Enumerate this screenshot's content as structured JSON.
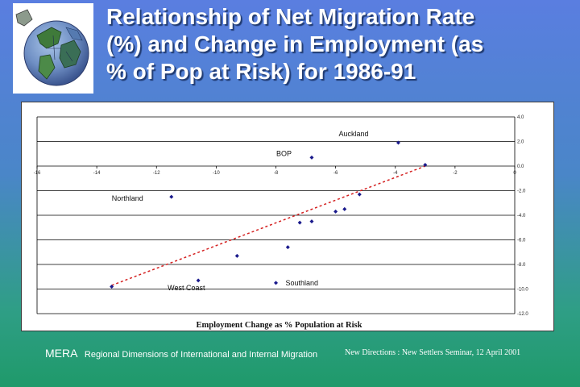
{
  "slide": {
    "title_lines": [
      "Relationship of Net Migration Rate",
      "(%) and Change in Employment (as",
      "% of Pop at Risk) for 1986-91"
    ],
    "logo_icon": "globe-icon"
  },
  "chart_data": {
    "type": "scatter",
    "title": "",
    "xlabel": "Employment Change as % Population at Risk",
    "ylabel": "",
    "xlim": [
      -16,
      0
    ],
    "ylim": [
      -12,
      4
    ],
    "x_ticks": [
      "-16",
      "-14",
      "-12",
      "-10",
      "-8",
      "-6",
      "-4",
      "-2",
      "0"
    ],
    "y_ticks": [
      "4.0",
      "2.0",
      "0.0",
      "-2.0",
      "-4.0",
      "-6.0",
      "-8.0",
      "-10.0",
      "-12.0"
    ],
    "grid": "horizontal",
    "marker_color": "#1a1a8c",
    "trend_color": "#d42020",
    "points": [
      {
        "x": -3.9,
        "y": 1.9,
        "label": "Auckland"
      },
      {
        "x": -6.8,
        "y": 0.7,
        "label": "BOP"
      },
      {
        "x": -3.0,
        "y": 0.1,
        "label": ""
      },
      {
        "x": -11.5,
        "y": -2.5,
        "label": "Northland"
      },
      {
        "x": -5.2,
        "y": -2.3,
        "label": ""
      },
      {
        "x": -5.7,
        "y": -3.5,
        "label": ""
      },
      {
        "x": -6.0,
        "y": -3.7,
        "label": ""
      },
      {
        "x": -6.8,
        "y": -4.5,
        "label": ""
      },
      {
        "x": -7.2,
        "y": -4.6,
        "label": ""
      },
      {
        "x": -7.6,
        "y": -6.6,
        "label": ""
      },
      {
        "x": -9.3,
        "y": -7.3,
        "label": ""
      },
      {
        "x": -10.6,
        "y": -9.3,
        "label": "West Coast"
      },
      {
        "x": -8.0,
        "y": -9.5,
        "label": "Southland"
      },
      {
        "x": -13.5,
        "y": -9.8,
        "label": ""
      }
    ],
    "trendline": {
      "x": [
        -13.5,
        -3.0
      ],
      "y": [
        -9.7,
        0.0
      ]
    }
  },
  "footer": {
    "brand": "MERA",
    "subtitle": "Regional Dimensions of International and Internal Migration",
    "conference": "New Directions : New Settlers Seminar, 12 April 2001"
  }
}
